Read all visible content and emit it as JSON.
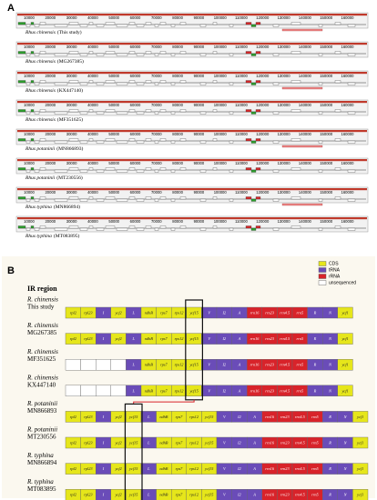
{
  "panel_a": {
    "label": "A",
    "ticks": [
      "10000",
      "20000",
      "30000",
      "40000",
      "50000",
      "60000",
      "70000",
      "80000",
      "90000",
      "100000",
      "110000",
      "120000",
      "130000",
      "140000",
      "150000",
      "160000"
    ],
    "tracks": [
      {
        "species": "Rhus chinensis",
        "accession": "(This study)"
      },
      {
        "species": "Rhus chinensis",
        "accession": "(MG267385)"
      },
      {
        "species": "Rhus chinensis",
        "accession": "(KX447140)"
      },
      {
        "species": "Rhus chinensis",
        "accession": "(MF351625)"
      },
      {
        "species": "Rhus potaninii",
        "accession": "(MN866893)"
      },
      {
        "species": "Rhus potaninii",
        "accession": "(MT230556)"
      },
      {
        "species": "Rhus typhina",
        "accession": "(MN866894)"
      },
      {
        "species": "Rhus typhina",
        "accession": "(MT083895)"
      }
    ]
  },
  "panel_b": {
    "label": "B",
    "title": "IR region",
    "legend": [
      {
        "label": "CDS",
        "color": "#e6e61a"
      },
      {
        "label": "tRNA",
        "color": "#6a4cb8"
      },
      {
        "label": "rRNA",
        "color": "#d8232a"
      },
      {
        "label": "unsequenced",
        "color": "#ffffff"
      }
    ],
    "rows": [
      {
        "species": "R. chinensis",
        "accession": "This study",
        "highlight": 8,
        "genes": [
          {
            "t": "rpl2",
            "k": 0
          },
          {
            "t": "rpl23",
            "k": 0
          },
          {
            "t": "I",
            "k": 1
          },
          {
            "t": "ycf2",
            "k": 0
          },
          {
            "t": "L",
            "k": 1
          },
          {
            "t": "ndhB",
            "k": 0
          },
          {
            "t": "rps7",
            "k": 0
          },
          {
            "t": "rps12",
            "k": 0
          },
          {
            "t": "ycf15",
            "k": 0
          },
          {
            "t": "V",
            "k": 1
          },
          {
            "t": "I2",
            "k": 1
          },
          {
            "t": "A",
            "k": 1
          },
          {
            "t": "rrn16",
            "k": 2
          },
          {
            "t": "rrn23",
            "k": 2
          },
          {
            "t": "rrn4.5",
            "k": 2
          },
          {
            "t": "rrn5",
            "k": 2
          },
          {
            "t": "R",
            "k": 1
          },
          {
            "t": "N",
            "k": 1
          },
          {
            "t": "ycf1",
            "k": 0
          }
        ]
      },
      {
        "species": "R. chinensis",
        "accession": "MG267385",
        "highlight": 8,
        "genes": [
          {
            "t": "rpl2",
            "k": 0
          },
          {
            "t": "rpl23",
            "k": 0
          },
          {
            "t": "I",
            "k": 1
          },
          {
            "t": "ycf2",
            "k": 0
          },
          {
            "t": "L",
            "k": 1
          },
          {
            "t": "ndhB",
            "k": 0
          },
          {
            "t": "rps7",
            "k": 0
          },
          {
            "t": "rps12",
            "k": 0
          },
          {
            "t": "ycf15",
            "k": 0
          },
          {
            "t": "V",
            "k": 1
          },
          {
            "t": "I2",
            "k": 1
          },
          {
            "t": "A",
            "k": 1
          },
          {
            "t": "rrn16",
            "k": 2
          },
          {
            "t": "rrn23",
            "k": 2
          },
          {
            "t": "rrn4.5",
            "k": 2
          },
          {
            "t": "rrn5",
            "k": 2
          },
          {
            "t": "R",
            "k": 1
          },
          {
            "t": "N",
            "k": 1
          },
          {
            "t": "ycf1",
            "k": 0
          }
        ]
      },
      {
        "species": "R. chinensis",
        "accession": "MF351625",
        "highlight": 8,
        "genes": [
          {
            "k": 3
          },
          {
            "k": 3
          },
          {
            "k": 3
          },
          {
            "k": 3
          },
          {
            "t": "L",
            "k": 1
          },
          {
            "t": "ndhB",
            "k": 0
          },
          {
            "t": "rps7",
            "k": 0
          },
          {
            "t": "rps12",
            "k": 0
          },
          {
            "t": "ycf15",
            "k": 0
          },
          {
            "t": "V",
            "k": 1
          },
          {
            "t": "I2",
            "k": 1
          },
          {
            "t": "A",
            "k": 1
          },
          {
            "t": "rrn16",
            "k": 2
          },
          {
            "t": "rrn23",
            "k": 2
          },
          {
            "t": "rrn4.5",
            "k": 2
          },
          {
            "t": "rrn5",
            "k": 2
          },
          {
            "t": "R",
            "k": 1
          },
          {
            "t": "N",
            "k": 1
          },
          {
            "t": "ycf1",
            "k": 0
          }
        ]
      },
      {
        "species": "R. chinensis",
        "accession": "KX447140",
        "highlight": 8,
        "genes": [
          {
            "k": 3
          },
          {
            "k": 3
          },
          {
            "k": 3
          },
          {
            "k": 3
          },
          {
            "t": "L",
            "k": 1
          },
          {
            "t": "ndhB",
            "k": 0
          },
          {
            "t": "rps7",
            "k": 0
          },
          {
            "t": "rps12",
            "k": 0
          },
          {
            "t": "ycf15",
            "k": 0
          },
          {
            "t": "V",
            "k": 1
          },
          {
            "t": "I2",
            "k": 1
          },
          {
            "t": "A",
            "k": 1
          },
          {
            "t": "rrn16",
            "k": 2
          },
          {
            "t": "rrn23",
            "k": 2
          },
          {
            "t": "rrn4.5",
            "k": 2
          },
          {
            "t": "rrn5",
            "k": 2
          },
          {
            "t": "R",
            "k": 1
          },
          {
            "t": "N",
            "k": 1
          },
          {
            "t": "ycf1",
            "k": 0
          }
        ]
      },
      {
        "species": "R. potaninii",
        "accession": "MN866893",
        "highlight": 4,
        "genes": [
          {
            "t": "rpl2",
            "k": 0
          },
          {
            "t": "rpl23",
            "k": 0
          },
          {
            "t": "I",
            "k": 1
          },
          {
            "t": "ycf2",
            "k": 0
          },
          {
            "t": "ycf15",
            "k": 0
          },
          {
            "t": "L",
            "k": 1
          },
          {
            "t": "ndhB",
            "k": 0
          },
          {
            "t": "rps7",
            "k": 0
          },
          {
            "t": "rps12",
            "k": 0
          },
          {
            "t": "ycf15",
            "k": 0
          },
          {
            "t": "V",
            "k": 1
          },
          {
            "t": "I2",
            "k": 1
          },
          {
            "t": "A",
            "k": 1
          },
          {
            "t": "rrn16",
            "k": 2
          },
          {
            "t": "rrn23",
            "k": 2
          },
          {
            "t": "rrn4.5",
            "k": 2
          },
          {
            "t": "rrn5",
            "k": 2
          },
          {
            "t": "R",
            "k": 1
          },
          {
            "t": "N",
            "k": 1
          },
          {
            "t": "ycf1",
            "k": 0
          }
        ]
      },
      {
        "species": "R. potaninii",
        "accession": "MT230556",
        "highlight": 4,
        "genes": [
          {
            "t": "rpl2",
            "k": 0
          },
          {
            "t": "rpl23",
            "k": 0
          },
          {
            "t": "I",
            "k": 1
          },
          {
            "t": "ycf2",
            "k": 0
          },
          {
            "t": "ycf15",
            "k": 0
          },
          {
            "t": "L",
            "k": 1
          },
          {
            "t": "ndhB",
            "k": 0
          },
          {
            "t": "rps7",
            "k": 0
          },
          {
            "t": "rps12",
            "k": 0
          },
          {
            "t": "ycf15",
            "k": 0
          },
          {
            "t": "V",
            "k": 1
          },
          {
            "t": "I2",
            "k": 1
          },
          {
            "t": "A",
            "k": 1
          },
          {
            "t": "rrn16",
            "k": 2
          },
          {
            "t": "rrn23",
            "k": 2
          },
          {
            "t": "rrn4.5",
            "k": 2
          },
          {
            "t": "rrn5",
            "k": 2
          },
          {
            "t": "R",
            "k": 1
          },
          {
            "t": "N",
            "k": 1
          },
          {
            "t": "ycf1",
            "k": 0
          }
        ]
      },
      {
        "species": "R. typhina",
        "accession": "MN866894",
        "highlight": 4,
        "genes": [
          {
            "t": "rpl2",
            "k": 0
          },
          {
            "t": "rpl23",
            "k": 0
          },
          {
            "t": "I",
            "k": 1
          },
          {
            "t": "ycf2",
            "k": 0
          },
          {
            "t": "ycf15",
            "k": 0
          },
          {
            "t": "L",
            "k": 1
          },
          {
            "t": "ndhB",
            "k": 0
          },
          {
            "t": "rps7",
            "k": 0
          },
          {
            "t": "rps12",
            "k": 0
          },
          {
            "t": "ycf15",
            "k": 0
          },
          {
            "t": "V",
            "k": 1
          },
          {
            "t": "I2",
            "k": 1
          },
          {
            "t": "A",
            "k": 1
          },
          {
            "t": "rrn16",
            "k": 2
          },
          {
            "t": "rrn23",
            "k": 2
          },
          {
            "t": "rrn4.5",
            "k": 2
          },
          {
            "t": "rrn5",
            "k": 2
          },
          {
            "t": "R",
            "k": 1
          },
          {
            "t": "N",
            "k": 1
          },
          {
            "t": "ycf1",
            "k": 0
          }
        ]
      },
      {
        "species": "R. typhina",
        "accession": "MT083895",
        "highlight": 4,
        "genes": [
          {
            "t": "rpl2",
            "k": 0
          },
          {
            "t": "rpl23",
            "k": 0
          },
          {
            "t": "I",
            "k": 1
          },
          {
            "t": "ycf2",
            "k": 0
          },
          {
            "t": "ycf15",
            "k": 0
          },
          {
            "t": "L",
            "k": 1
          },
          {
            "t": "ndhB",
            "k": 0
          },
          {
            "t": "rps7",
            "k": 0
          },
          {
            "t": "rps12",
            "k": 0
          },
          {
            "t": "ycf15",
            "k": 0
          },
          {
            "t": "V",
            "k": 1
          },
          {
            "t": "I2",
            "k": 1
          },
          {
            "t": "A",
            "k": 1
          },
          {
            "t": "rrn16",
            "k": 2
          },
          {
            "t": "rrn23",
            "k": 2
          },
          {
            "t": "rrn4.5",
            "k": 2
          },
          {
            "t": "rrn5",
            "k": 2
          },
          {
            "t": "R",
            "k": 1
          },
          {
            "t": "N",
            "k": 1
          },
          {
            "t": "ycf1",
            "k": 0
          }
        ]
      }
    ]
  }
}
